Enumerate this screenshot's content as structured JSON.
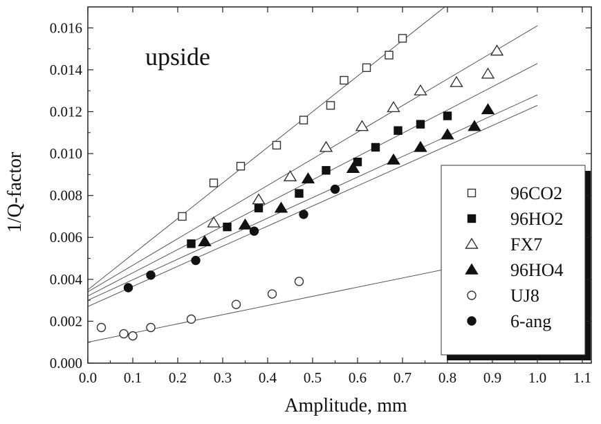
{
  "chart_data": {
    "type": "scatter",
    "annotation": "upside",
    "xlabel": "Amplitude,  mm",
    "ylabel": "1/Q-factor",
    "xlim": [
      0.0,
      1.12
    ],
    "ylim": [
      0.0,
      0.017
    ],
    "x_ticks": [
      "0.0",
      "0.1",
      "0.2",
      "0.3",
      "0.4",
      "0.5",
      "0.6",
      "0.7",
      "0.8",
      "0.9",
      "1.0",
      "1.1"
    ],
    "y_ticks": [
      "0.000",
      "0.002",
      "0.004",
      "0.006",
      "0.008",
      "0.010",
      "0.012",
      "0.014",
      "0.016"
    ],
    "grid": false,
    "legend_position": "bottom-right",
    "series": [
      {
        "name": "96CO2",
        "marker": "square-open",
        "points": [
          [
            0.21,
            0.007
          ],
          [
            0.28,
            0.0086
          ],
          [
            0.34,
            0.0094
          ],
          [
            0.42,
            0.0104
          ],
          [
            0.48,
            0.0116
          ],
          [
            0.54,
            0.0123
          ],
          [
            0.57,
            0.0135
          ],
          [
            0.62,
            0.0141
          ],
          [
            0.67,
            0.0147
          ],
          [
            0.7,
            0.0155
          ]
        ],
        "fit": [
          [
            0.0,
            0.0035
          ],
          [
            0.8,
            0.0171
          ]
        ]
      },
      {
        "name": "96HO2",
        "marker": "square-filled",
        "points": [
          [
            0.23,
            0.0057
          ],
          [
            0.31,
            0.0065
          ],
          [
            0.38,
            0.0074
          ],
          [
            0.47,
            0.0081
          ],
          [
            0.53,
            0.0092
          ],
          [
            0.6,
            0.0096
          ],
          [
            0.64,
            0.0103
          ],
          [
            0.69,
            0.0111
          ],
          [
            0.74,
            0.0114
          ],
          [
            0.8,
            0.0118
          ]
        ],
        "fit": [
          [
            0.0,
            0.0032
          ],
          [
            1.0,
            0.0143
          ]
        ]
      },
      {
        "name": "FX7",
        "marker": "triangle-open",
        "points": [
          [
            0.28,
            0.0067
          ],
          [
            0.38,
            0.0078
          ],
          [
            0.45,
            0.0089
          ],
          [
            0.53,
            0.0103
          ],
          [
            0.61,
            0.0113
          ],
          [
            0.68,
            0.0122
          ],
          [
            0.74,
            0.013
          ],
          [
            0.82,
            0.0134
          ],
          [
            0.89,
            0.0138
          ],
          [
            0.91,
            0.0149
          ]
        ],
        "fit": [
          [
            0.0,
            0.0034
          ],
          [
            1.0,
            0.0161
          ]
        ]
      },
      {
        "name": "96HO4",
        "marker": "triangle-filled",
        "points": [
          [
            0.26,
            0.0058
          ],
          [
            0.35,
            0.0066
          ],
          [
            0.43,
            0.0074
          ],
          [
            0.49,
            0.0088
          ],
          [
            0.59,
            0.0093
          ],
          [
            0.68,
            0.0097
          ],
          [
            0.74,
            0.0103
          ],
          [
            0.8,
            0.0109
          ],
          [
            0.86,
            0.0113
          ],
          [
            0.89,
            0.0121
          ]
        ],
        "fit": [
          [
            0.0,
            0.003
          ],
          [
            1.0,
            0.0128
          ]
        ]
      },
      {
        "name": "UJ8",
        "marker": "circle-open",
        "points": [
          [
            0.03,
            0.0017
          ],
          [
            0.08,
            0.0014
          ],
          [
            0.1,
            0.0013
          ],
          [
            0.14,
            0.0017
          ],
          [
            0.23,
            0.0021
          ],
          [
            0.33,
            0.0028
          ],
          [
            0.41,
            0.0033
          ],
          [
            0.47,
            0.0039
          ]
        ],
        "fit": [
          [
            0.0,
            0.001
          ],
          [
            0.8,
            0.0045
          ]
        ]
      },
      {
        "name": "6-ang",
        "marker": "circle-filled",
        "points": [
          [
            0.09,
            0.0036
          ],
          [
            0.14,
            0.0042
          ],
          [
            0.24,
            0.0049
          ],
          [
            0.37,
            0.0063
          ],
          [
            0.48,
            0.0071
          ],
          [
            0.55,
            0.0083
          ]
        ],
        "fit": [
          [
            0.0,
            0.0027
          ],
          [
            1.0,
            0.0123
          ]
        ]
      }
    ]
  }
}
